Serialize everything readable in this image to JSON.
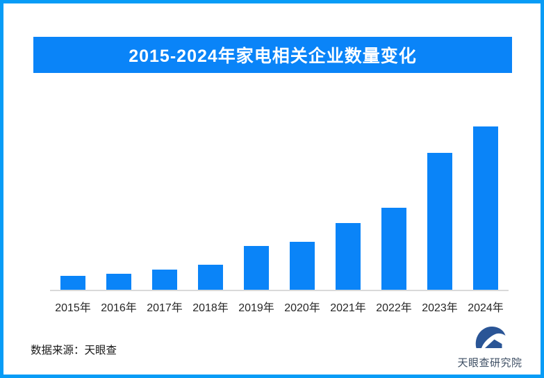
{
  "frame": {
    "border_color": "#089cf6",
    "background_color": "#ffffff"
  },
  "banner": {
    "title": "2015-2024年家电相关企业数量变化",
    "background_color": "#0a84f8",
    "text_color": "#ffffff"
  },
  "chart_data": {
    "type": "bar",
    "title": "2015-2024年家电相关企业数量变化",
    "categories": [
      "2015年",
      "2016年",
      "2017年",
      "2018年",
      "2019年",
      "2020年",
      "2021年",
      "2022年",
      "2023年",
      "2024年"
    ],
    "values": [
      8.5,
      9.8,
      12.3,
      15.5,
      26.8,
      29.4,
      40.9,
      50.2,
      83.8,
      100
    ],
    "xlabel": "",
    "ylabel": "",
    "ylim": [
      0,
      100
    ],
    "grid": false,
    "legend_position": "none",
    "bar_color": "#0a84f8",
    "axis_line_color": "#d9d9d9",
    "note": "No numeric y-axis or data labels shown in the image; values are relative bar heights with 2024 = 100"
  },
  "footer": {
    "source_label": "数据来源：天眼查",
    "logo_text": "天眼查研究院",
    "logo_color": "#2a5596",
    "logo_text_color": "#3d4e63"
  }
}
